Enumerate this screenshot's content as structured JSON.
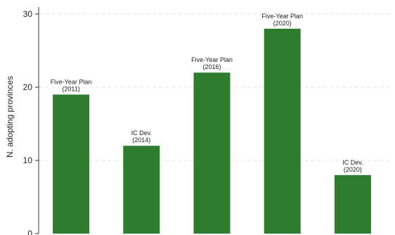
{
  "chart_data": {
    "type": "bar",
    "ylabel": "N. adopting provinces",
    "xlabel": "",
    "ylim": [
      0,
      30
    ],
    "yticks": [
      0,
      10,
      20,
      30
    ],
    "grid": true,
    "bar_color": "#2e7d2e",
    "grid_color": "#e6e6e6",
    "bars": [
      {
        "value": 19,
        "label_line1": "Five-Year Plan",
        "label_line2": "(2011)"
      },
      {
        "value": 12,
        "label_line1": "IC Dev.",
        "label_line2": "(2014)"
      },
      {
        "value": 22,
        "label_line1": "Five-Year Plan",
        "label_line2": "(2016)"
      },
      {
        "value": 28,
        "label_line1": "Five-Year Plan",
        "label_line2": "(2020)"
      },
      {
        "value": 8,
        "label_line1": "IC Dev.",
        "label_line2": "(2020)"
      }
    ]
  }
}
